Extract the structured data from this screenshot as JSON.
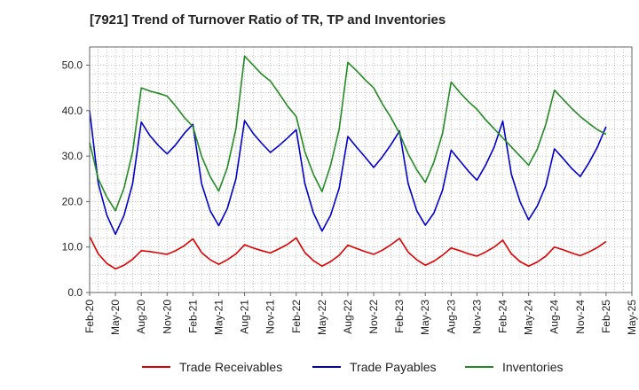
{
  "chart_data": {
    "type": "line",
    "title": "[7921]  Trend of Turnover Ratio of TR, TP and Inventories",
    "xlabel": "",
    "ylabel": "",
    "ylim": [
      0,
      54
    ],
    "yticks": [
      "0.0",
      "10.0",
      "20.0",
      "30.0",
      "40.0",
      "50.0"
    ],
    "xticks": [
      "Feb-20",
      "May-20",
      "Aug-20",
      "Nov-20",
      "Feb-21",
      "May-21",
      "Aug-21",
      "Nov-21",
      "Feb-22",
      "May-22",
      "Aug-22",
      "Nov-22",
      "Feb-23",
      "May-23",
      "Aug-23",
      "Nov-23",
      "Feb-24",
      "May-24",
      "Aug-24",
      "Nov-24",
      "Feb-25",
      "May-25"
    ],
    "grid": true,
    "legend_position": "bottom",
    "x": [
      "Feb-20",
      "Mar-20",
      "Apr-20",
      "May-20",
      "Jun-20",
      "Jul-20",
      "Aug-20",
      "Sep-20",
      "Oct-20",
      "Nov-20",
      "Dec-20",
      "Jan-21",
      "Feb-21",
      "Mar-21",
      "Apr-21",
      "May-21",
      "Jun-21",
      "Jul-21",
      "Aug-21",
      "Sep-21",
      "Oct-21",
      "Nov-21",
      "Dec-21",
      "Jan-22",
      "Feb-22",
      "Mar-22",
      "Apr-22",
      "May-22",
      "Jun-22",
      "Jul-22",
      "Aug-22",
      "Sep-22",
      "Oct-22",
      "Nov-22",
      "Dec-22",
      "Jan-23",
      "Feb-23",
      "Mar-23",
      "Apr-23",
      "May-23",
      "Jun-23",
      "Jul-23",
      "Aug-23",
      "Sep-23",
      "Oct-23",
      "Nov-23",
      "Dec-23",
      "Jan-24",
      "Feb-24",
      "Mar-24",
      "Apr-24",
      "May-24",
      "Jun-24",
      "Jul-24",
      "Aug-24",
      "Sep-24",
      "Oct-24",
      "Nov-24",
      "Dec-24",
      "Jan-25",
      "Feb-25"
    ],
    "series": [
      {
        "name": "Trade Receivables",
        "color": "#e00000",
        "values": [
          12.3,
          8.5,
          6.4,
          5.2,
          6.0,
          7.3,
          9.2,
          9.0,
          8.7,
          8.4,
          9.2,
          10.3,
          11.8,
          8.8,
          7.2,
          6.2,
          7.2,
          8.5,
          10.5,
          9.8,
          9.2,
          8.7,
          9.6,
          10.6,
          12.0,
          8.8,
          7.0,
          5.8,
          6.8,
          8.2,
          10.4,
          9.7,
          9.0,
          8.4,
          9.3,
          10.5,
          11.9,
          8.9,
          7.2,
          6.0,
          6.9,
          8.2,
          9.8,
          9.2,
          8.5,
          8.0,
          8.9,
          10.0,
          11.5,
          8.5,
          6.8,
          5.8,
          6.7,
          8.0,
          10.0,
          9.4,
          8.7,
          8.1,
          8.9,
          9.9,
          11.2
        ]
      },
      {
        "name": "Trade Payables",
        "color": "#0000cc",
        "values": [
          40.0,
          24.0,
          17.0,
          12.8,
          17.0,
          24.0,
          37.5,
          34.5,
          32.3,
          30.5,
          32.5,
          35.0,
          37.0,
          24.0,
          18.0,
          14.7,
          18.5,
          25.0,
          37.8,
          35.0,
          32.8,
          30.8,
          32.3,
          34.0,
          35.8,
          24.0,
          17.5,
          13.5,
          17.0,
          23.0,
          34.3,
          32.0,
          29.8,
          27.5,
          29.8,
          32.5,
          35.5,
          24.0,
          18.0,
          14.8,
          17.5,
          22.5,
          31.3,
          29.0,
          26.7,
          24.7,
          28.0,
          32.0,
          37.7,
          26.0,
          20.0,
          16.0,
          19.0,
          23.5,
          31.6,
          29.5,
          27.3,
          25.5,
          28.5,
          32.0,
          36.5
        ]
      },
      {
        "name": "Inventories",
        "color": "#228b22",
        "values": [
          33.0,
          25.0,
          21.0,
          18.0,
          23.0,
          31.0,
          45.0,
          44.3,
          43.8,
          43.2,
          41.0,
          38.5,
          36.5,
          30.0,
          25.5,
          22.3,
          27.5,
          36.0,
          52.0,
          50.0,
          48.0,
          46.5,
          43.8,
          41.0,
          38.7,
          31.0,
          26.0,
          22.2,
          28.0,
          36.0,
          50.6,
          48.8,
          46.8,
          45.0,
          41.5,
          38.5,
          35.0,
          30.5,
          27.0,
          24.2,
          28.7,
          35.0,
          46.3,
          44.0,
          42.0,
          40.3,
          38.0,
          36.0,
          34.0,
          32.0,
          30.0,
          28.0,
          31.5,
          37.0,
          44.5,
          42.5,
          40.5,
          38.7,
          37.2,
          35.8,
          34.8
        ]
      }
    ]
  }
}
